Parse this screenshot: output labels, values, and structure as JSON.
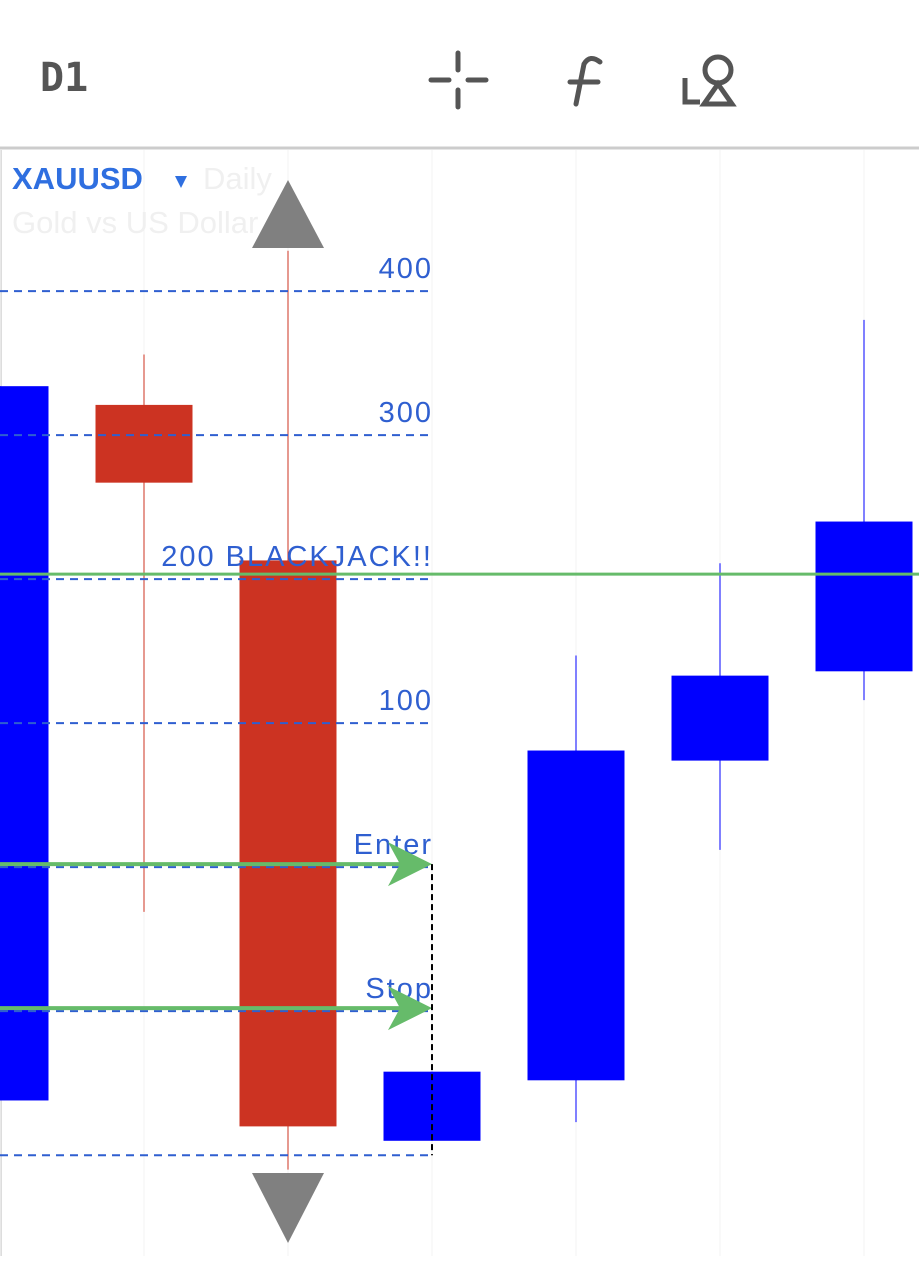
{
  "header": {
    "timeframe": "D1"
  },
  "chart_data": {
    "type": "candlestick",
    "symbol": "XAUUSD",
    "period": "Daily",
    "description": "Gold vs US Dollar",
    "open": [
      -162,
      321,
      213,
      -190,
      -148,
      74,
      136
    ],
    "high": [
      334,
      356,
      428,
      -142,
      147,
      211,
      380
    ],
    "low": [
      -162,
      -31,
      -210,
      -190,
      -177,
      12,
      116
    ],
    "close": [
      334,
      267,
      -180,
      -142,
      81,
      133,
      240
    ],
    "up_color": "#0000ff",
    "down_color": "#cc3322",
    "ylim": [
      -270,
      498
    ],
    "levels": [
      400,
      300,
      {
        "value": 200,
        "label": "200 BLACKJACK!!"
      },
      100,
      {
        "value": 0,
        "label": "Enter"
      },
      {
        "value": -100,
        "label": "Stop"
      }
    ],
    "bottom_level": -200
  }
}
